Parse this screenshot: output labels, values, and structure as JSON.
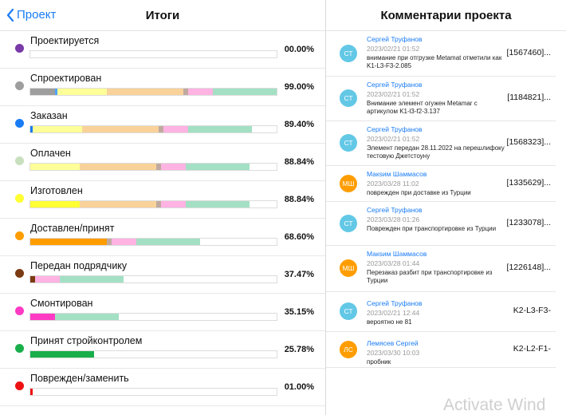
{
  "header": {
    "back_label": "Проект",
    "title": "Итоги",
    "comments_title": "Комментарии проекта"
  },
  "statuses": [
    {
      "label": "Проектируется",
      "percent": "00.00%",
      "color": "#7a3aa8",
      "segments": []
    },
    {
      "label": "Спроектирован",
      "percent": "99.00%",
      "color": "#9e9e9e",
      "segments": [
        {
          "color": "#9e9e9e",
          "value": 10
        },
        {
          "color": "#4ea3ff",
          "value": 1
        },
        {
          "color": "#ffff99",
          "value": 20
        },
        {
          "color": "#f9d29a",
          "value": 31
        },
        {
          "color": "#c0aaa0",
          "value": 2
        },
        {
          "color": "#ffb3e3",
          "value": 10
        },
        {
          "color": "#a3e0c4",
          "value": 26
        }
      ]
    },
    {
      "label": "Заказан",
      "percent": "89.40%",
      "color": "#1a7cf5",
      "segments": [
        {
          "color": "#1a7cf5",
          "value": 1
        },
        {
          "color": "#ffff99",
          "value": 20
        },
        {
          "color": "#f9d29a",
          "value": 31
        },
        {
          "color": "#c0aaa0",
          "value": 2
        },
        {
          "color": "#ffb3e3",
          "value": 10
        },
        {
          "color": "#a3e0c4",
          "value": 26
        }
      ]
    },
    {
      "label": "Оплачен",
      "percent": "88.84%",
      "color": "#c9e0bf",
      "segments": [
        {
          "color": "#ffff99",
          "value": 20
        },
        {
          "color": "#f9d29a",
          "value": 31
        },
        {
          "color": "#c0aaa0",
          "value": 2
        },
        {
          "color": "#ffb3e3",
          "value": 10
        },
        {
          "color": "#a3e0c4",
          "value": 26
        }
      ]
    },
    {
      "label": "Изготовлен",
      "percent": "88.84%",
      "color": "#ffff33",
      "segments": [
        {
          "color": "#ffff33",
          "value": 20
        },
        {
          "color": "#f9d29a",
          "value": 31
        },
        {
          "color": "#c0aaa0",
          "value": 2
        },
        {
          "color": "#ffb3e3",
          "value": 10
        },
        {
          "color": "#a3e0c4",
          "value": 26
        }
      ]
    },
    {
      "label": "Доставлен/принят",
      "percent": "68.60%",
      "color": "#ff9d00",
      "segments": [
        {
          "color": "#ff9d00",
          "value": 31
        },
        {
          "color": "#c0aaa0",
          "value": 2
        },
        {
          "color": "#ffb3e3",
          "value": 10
        },
        {
          "color": "#a3e0c4",
          "value": 26
        }
      ]
    },
    {
      "label": "Передан подрядчику",
      "percent": "37.47%",
      "color": "#7b3b12",
      "segments": [
        {
          "color": "#7b3b12",
          "value": 2
        },
        {
          "color": "#ffb3e3",
          "value": 10
        },
        {
          "color": "#a3e0c4",
          "value": 26
        }
      ]
    },
    {
      "label": "Смонтирован",
      "percent": "35.15%",
      "color": "#ff3bc4",
      "segments": [
        {
          "color": "#ff3bc4",
          "value": 10
        },
        {
          "color": "#a3e0c4",
          "value": 26
        }
      ]
    },
    {
      "label": "Принят стройконтролем",
      "percent": "25.78%",
      "color": "#1aae4b",
      "segments": [
        {
          "color": "#1aae4b",
          "value": 26
        }
      ]
    },
    {
      "label": "Поврежден/заменить",
      "percent": "01.00%",
      "color": "#ee1111",
      "segments": [
        {
          "color": "#ee1111",
          "value": 1
        }
      ]
    }
  ],
  "comments": [
    {
      "initials": "СТ",
      "avatar_color": "#63c8e6",
      "author": "Сергей Труфанов",
      "date": "2023/02/21 01:52",
      "text": "внимание при отгрузке Metamat отметили как K1-L3-F3-2.085",
      "ref": "[1567460]..."
    },
    {
      "initials": "СТ",
      "avatar_color": "#63c8e6",
      "author": "Сергей Труфанов",
      "date": "2023/02/21 01:52",
      "text": "Внимание элемент огужен Metamar с артикулом K1-l3-f2-3.137",
      "ref": "[1184821]..."
    },
    {
      "initials": "СТ",
      "avatar_color": "#63c8e6",
      "author": "Сергей Труфанов",
      "date": "2023/02/21 01:52",
      "text": "Элемент передан 28.11.2022 на перешлифоку тестовую Джетстоуну",
      "ref": "[1568323]..."
    },
    {
      "initials": "МШ",
      "avatar_color": "#ff9d00",
      "author": "Макsим Шаммасов",
      "date": "2023/03/28 11:02",
      "text": "поврежден при доставке из Турции",
      "ref": "[1335629]..."
    },
    {
      "initials": "СТ",
      "avatar_color": "#63c8e6",
      "author": "Сергей Труфанов",
      "date": "2023/03/28 01:26",
      "text": "Поврежден при транспортировке из Турции",
      "ref": "[1233078]..."
    },
    {
      "initials": "МШ",
      "avatar_color": "#ff9d00",
      "author": "Макsим Шаммасов",
      "date": "2023/03/28 01:44",
      "text": "Перезаказ разбит при транспортировке из Турции",
      "ref": "[1226148]..."
    },
    {
      "initials": "СТ",
      "avatar_color": "#63c8e6",
      "author": "Сергей Труфанов",
      "date": "2023/02/21 12:44",
      "text": "вероятно не 81",
      "ref": "K2-L3-F3-"
    },
    {
      "initials": "ЛС",
      "avatar_color": "#ff9d00",
      "author": "Лемясев Сергей",
      "date": "2023/03/30 10:03",
      "text": "пробник",
      "ref": "K2-L2-F1-"
    }
  ],
  "watermark": "Activate Wind"
}
